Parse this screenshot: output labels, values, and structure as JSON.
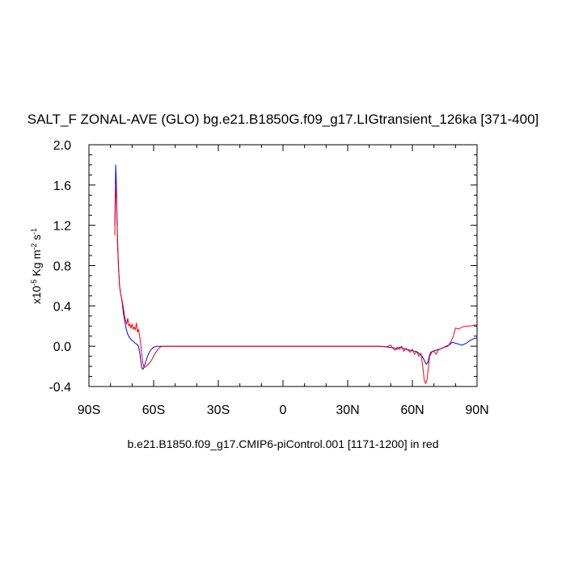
{
  "chart_data": {
    "type": "line",
    "title": "SALT_F ZONAL-AVE (GLO) bg.e21.B1850G.f09_g17.LIGtransient_126ka [371-400]",
    "xlabel": "b.e21.B1850.f09_g17.CMIP6-piControl.001 [1171-1200] in red",
    "ylabel": {
      "prefix": "x10",
      "exponent": "-5",
      "unit": "Kg m",
      "unit_exponent": "-2",
      "unit2": " s",
      "unit2_exponent": "-1"
    },
    "xlim": [
      -90,
      90
    ],
    "ylim": [
      -0.4,
      2.0
    ],
    "x_ticks": [
      {
        "value": -90,
        "label": "90S"
      },
      {
        "value": -60,
        "label": "60S"
      },
      {
        "value": -30,
        "label": "30S"
      },
      {
        "value": 0,
        "label": "0"
      },
      {
        "value": 30,
        "label": "30N"
      },
      {
        "value": 60,
        "label": "60N"
      },
      {
        "value": 90,
        "label": "90N"
      }
    ],
    "y_ticks": [
      {
        "value": -0.4,
        "label": "-0.4"
      },
      {
        "value": 0.0,
        "label": "0.0"
      },
      {
        "value": 0.4,
        "label": "0.4"
      },
      {
        "value": 0.8,
        "label": "0.8"
      },
      {
        "value": 1.2,
        "label": "1.2"
      },
      {
        "value": 1.6,
        "label": "1.6"
      },
      {
        "value": 2.0,
        "label": "2.0"
      }
    ],
    "grid": false,
    "series": [
      {
        "color": "#0000ff",
        "points": [
          [
            -78.0,
            1.2
          ],
          [
            -77.6,
            1.8
          ],
          [
            -77.2,
            1.55
          ],
          [
            -76.8,
            1.1
          ],
          [
            -76.3,
            0.8
          ],
          [
            -75.8,
            0.6
          ],
          [
            -75.3,
            0.52
          ],
          [
            -74.8,
            0.47
          ],
          [
            -74.4,
            0.4
          ],
          [
            -74.0,
            0.32
          ],
          [
            -73.4,
            0.25
          ],
          [
            -72.8,
            0.18
          ],
          [
            -72.2,
            0.13
          ],
          [
            -71.6,
            0.1
          ],
          [
            -71.0,
            0.08
          ],
          [
            -70.2,
            0.06
          ],
          [
            -69.4,
            0.05
          ],
          [
            -68.6,
            0.03
          ],
          [
            -67.8,
            0.02
          ],
          [
            -67.0,
            0.0
          ],
          [
            -66.4,
            -0.07
          ],
          [
            -65.9,
            -0.16
          ],
          [
            -65.4,
            -0.22
          ],
          [
            -64.9,
            -0.23
          ],
          [
            -64.4,
            -0.2
          ],
          [
            -63.6,
            -0.15
          ],
          [
            -62.8,
            -0.1
          ],
          [
            -62.0,
            -0.06
          ],
          [
            -61.0,
            -0.03
          ],
          [
            -60.0,
            -0.01
          ],
          [
            -58.5,
            0.0
          ],
          [
            -55.0,
            0.0
          ],
          [
            -30.0,
            0.0
          ],
          [
            0.0,
            0.0
          ],
          [
            30.0,
            0.0
          ],
          [
            45.0,
            0.0
          ],
          [
            47.0,
            -0.005
          ],
          [
            49.0,
            -0.01
          ],
          [
            51.0,
            -0.015
          ],
          [
            52.0,
            -0.02
          ],
          [
            53.0,
            -0.03
          ],
          [
            54.0,
            -0.01
          ],
          [
            55.5,
            -0.02
          ],
          [
            57.0,
            -0.03
          ],
          [
            59.0,
            -0.04
          ],
          [
            61.0,
            -0.05
          ],
          [
            62.5,
            -0.06
          ],
          [
            63.5,
            -0.08
          ],
          [
            64.5,
            -0.1
          ],
          [
            65.5,
            -0.14
          ],
          [
            66.5,
            -0.18
          ],
          [
            67.2,
            -0.16
          ],
          [
            67.8,
            -0.1
          ],
          [
            68.5,
            -0.06
          ],
          [
            69.5,
            -0.05
          ],
          [
            71.0,
            -0.04
          ],
          [
            72.5,
            -0.03
          ],
          [
            74.0,
            -0.02
          ],
          [
            75.5,
            0.0
          ],
          [
            77.0,
            0.01
          ],
          [
            78.5,
            0.04
          ],
          [
            80.0,
            0.03
          ],
          [
            81.5,
            0.02
          ],
          [
            83.0,
            0.01
          ],
          [
            85.0,
            0.03
          ],
          [
            87.0,
            0.06
          ],
          [
            89.0,
            0.08
          ],
          [
            90.0,
            0.08
          ]
        ]
      },
      {
        "color": "#ff0000",
        "points": [
          [
            -78.0,
            1.1
          ],
          [
            -77.6,
            1.6
          ],
          [
            -77.2,
            1.45
          ],
          [
            -76.8,
            1.05
          ],
          [
            -76.3,
            0.78
          ],
          [
            -75.8,
            0.6
          ],
          [
            -75.3,
            0.52
          ],
          [
            -74.9,
            0.48
          ],
          [
            -74.5,
            0.44
          ],
          [
            -74.0,
            0.38
          ],
          [
            -73.5,
            0.3
          ],
          [
            -73.0,
            0.26
          ],
          [
            -72.5,
            0.22
          ],
          [
            -72.0,
            0.28
          ],
          [
            -71.5,
            0.2
          ],
          [
            -71.0,
            0.22
          ],
          [
            -70.5,
            0.18
          ],
          [
            -70.0,
            0.22
          ],
          [
            -69.5,
            0.17
          ],
          [
            -69.0,
            0.19
          ],
          [
            -68.5,
            0.16
          ],
          [
            -68.0,
            0.23
          ],
          [
            -67.5,
            0.14
          ],
          [
            -67.0,
            0.17
          ],
          [
            -66.5,
            0.1
          ],
          [
            -66.0,
            0.02
          ],
          [
            -65.5,
            -0.08
          ],
          [
            -65.0,
            -0.17
          ],
          [
            -64.5,
            -0.21
          ],
          [
            -64.0,
            -0.21
          ],
          [
            -63.0,
            -0.19
          ],
          [
            -62.0,
            -0.17
          ],
          [
            -61.0,
            -0.14
          ],
          [
            -60.0,
            -0.1
          ],
          [
            -59.0,
            -0.06
          ],
          [
            -58.0,
            -0.03
          ],
          [
            -57.0,
            -0.01
          ],
          [
            -56.0,
            0.0
          ],
          [
            -55.0,
            0.0
          ],
          [
            -30.0,
            0.0
          ],
          [
            0.0,
            0.0
          ],
          [
            30.0,
            0.0
          ],
          [
            46.0,
            0.0
          ],
          [
            48.0,
            -0.005
          ],
          [
            50.0,
            0.01
          ],
          [
            51.0,
            -0.02
          ],
          [
            52.0,
            -0.04
          ],
          [
            53.0,
            -0.01
          ],
          [
            54.0,
            -0.03
          ],
          [
            55.0,
            0.0
          ],
          [
            56.0,
            -0.05
          ],
          [
            57.0,
            -0.02
          ],
          [
            58.0,
            -0.04
          ],
          [
            59.0,
            -0.06
          ],
          [
            60.0,
            -0.03
          ],
          [
            61.0,
            -0.08
          ],
          [
            62.0,
            -0.05
          ],
          [
            63.0,
            -0.1
          ],
          [
            64.0,
            -0.07
          ],
          [
            64.8,
            -0.2
          ],
          [
            65.5,
            -0.34
          ],
          [
            66.2,
            -0.37
          ],
          [
            66.8,
            -0.33
          ],
          [
            67.4,
            -0.22
          ],
          [
            68.0,
            -0.1
          ],
          [
            69.0,
            -0.06
          ],
          [
            70.0,
            -0.05
          ],
          [
            71.0,
            -0.08
          ],
          [
            72.0,
            -0.04
          ],
          [
            73.5,
            -0.02
          ],
          [
            75.0,
            -0.01
          ],
          [
            76.5,
            0.0
          ],
          [
            78.0,
            0.05
          ],
          [
            79.0,
            0.1
          ],
          [
            80.0,
            0.18
          ],
          [
            81.5,
            0.17
          ],
          [
            83.0,
            0.19
          ],
          [
            85.0,
            0.2
          ],
          [
            87.0,
            0.2
          ],
          [
            89.0,
            0.21
          ],
          [
            90.0,
            0.21
          ]
        ]
      }
    ]
  }
}
